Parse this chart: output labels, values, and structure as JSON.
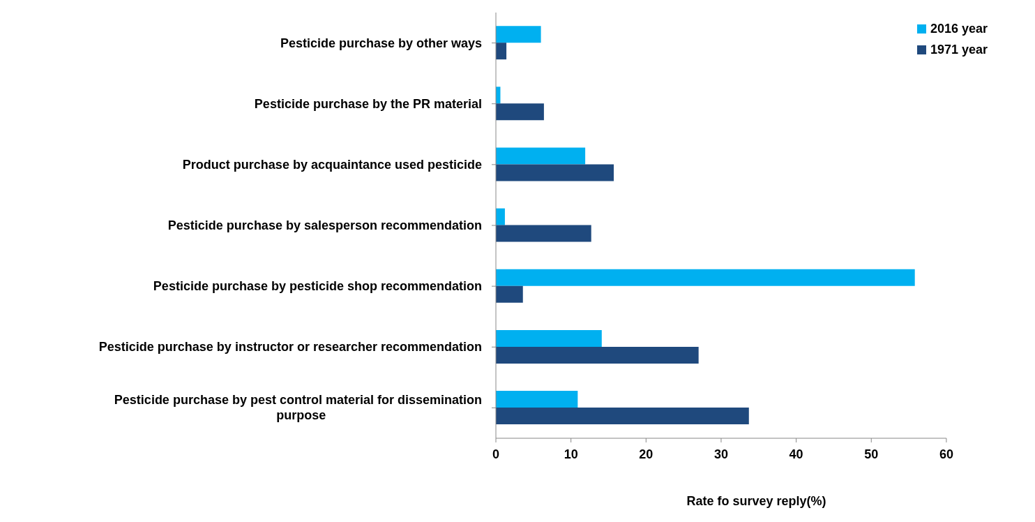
{
  "chart_data": {
    "type": "bar",
    "orientation": "horizontal",
    "xlabel": "Rate fo survey reply(%)",
    "categories": [
      "Pesticide purchase by other ways",
      "Pesticide purchase by the PR material",
      "Product purchase by acquaintance used pesticide",
      "Pesticide purchase by salesperson recommendation",
      "Pesticide purchase by pesticide shop recommendation",
      "Pesticide purchase by instructor or researcher recommendation",
      "Pesticide purchase by pest control material for dissemination purpose"
    ],
    "series": [
      {
        "name": "2016 year",
        "color": "#00b0f0",
        "values": [
          6.0,
          0.6,
          11.9,
          1.2,
          55.8,
          14.1,
          10.9
        ]
      },
      {
        "name": "1971 year",
        "color": "#1f497d",
        "values": [
          1.4,
          6.4,
          15.7,
          12.7,
          3.6,
          27.0,
          33.7
        ]
      }
    ],
    "xlim": [
      0,
      60
    ],
    "xticks": [
      0,
      10,
      20,
      30,
      40,
      50,
      60
    ],
    "legend": "top right"
  }
}
